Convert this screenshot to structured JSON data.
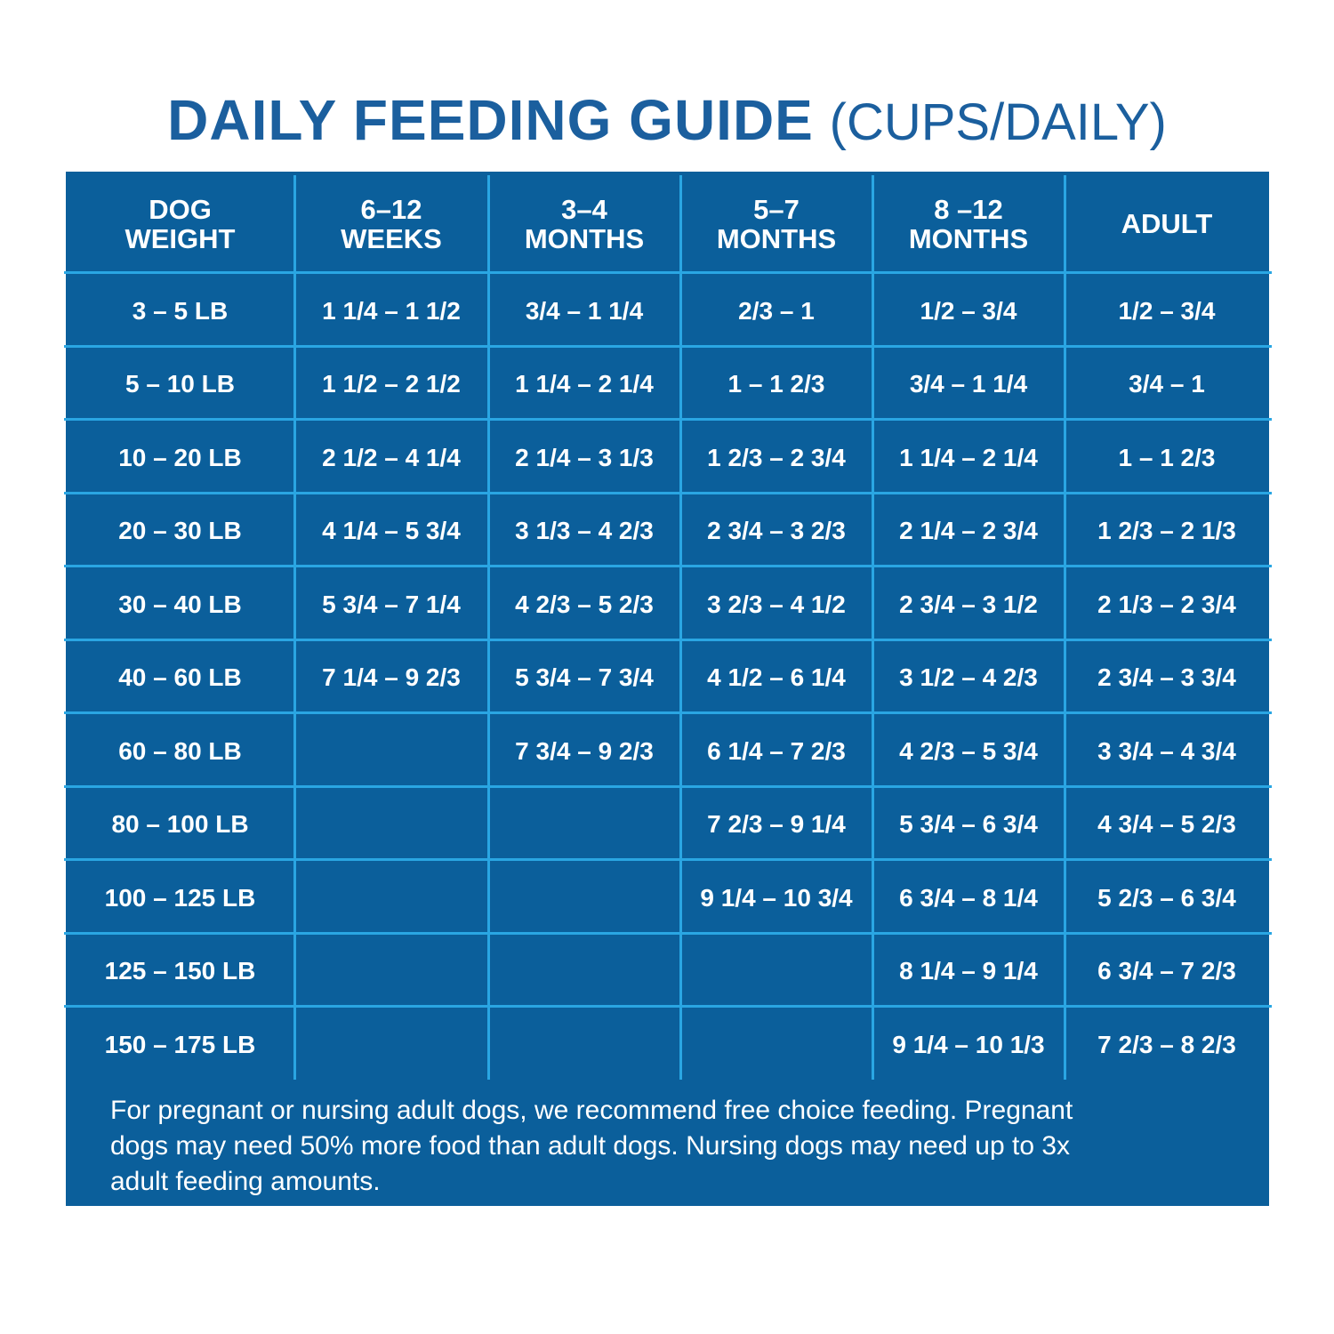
{
  "header": {
    "title": "DAILY FEEDING GUIDE",
    "subtitle": "(CUPS/DAILY)"
  },
  "table": {
    "columns": [
      [
        "DOG",
        "WEIGHT"
      ],
      [
        "6–12",
        "WEEKS"
      ],
      [
        "3–4",
        "MONTHS"
      ],
      [
        "5–7",
        "MONTHS"
      ],
      [
        "8 –12",
        "MONTHS"
      ],
      [
        "ADULT"
      ]
    ],
    "rows": [
      [
        "3 – 5 LB",
        "1 1/4 – 1 1/2",
        "3/4 – 1 1/4",
        "2/3 – 1",
        "1/2 – 3/4",
        "1/2 – 3/4"
      ],
      [
        "5 – 10 LB",
        "1 1/2 – 2 1/2",
        "1 1/4 – 2 1/4",
        "1 – 1 2/3",
        "3/4 – 1 1/4",
        "3/4 – 1"
      ],
      [
        "10 – 20 LB",
        "2 1/2 – 4 1/4",
        "2 1/4 – 3 1/3",
        "1 2/3 – 2 3/4",
        "1 1/4 – 2 1/4",
        "1 – 1 2/3"
      ],
      [
        "20 – 30 LB",
        "4 1/4 – 5 3/4",
        "3 1/3 – 4 2/3",
        "2 3/4 – 3 2/3",
        "2 1/4 – 2 3/4",
        "1 2/3 – 2 1/3"
      ],
      [
        "30 – 40 LB",
        "5 3/4 – 7 1/4",
        "4 2/3 – 5 2/3",
        "3 2/3 – 4 1/2",
        "2 3/4 – 3 1/2",
        "2 1/3 – 2 3/4"
      ],
      [
        "40 – 60 LB",
        "7 1/4 – 9 2/3",
        "5 3/4 – 7 3/4",
        "4 1/2 – 6 1/4",
        "3 1/2 – 4 2/3",
        "2 3/4 – 3 3/4"
      ],
      [
        "60 – 80 LB",
        null,
        "7 3/4 – 9 2/3",
        "6 1/4 – 7 2/3",
        "4 2/3 – 5 3/4",
        "3 3/4 – 4 3/4"
      ],
      [
        "80 – 100 LB",
        null,
        null,
        "7 2/3 – 9 1/4",
        "5 3/4 – 6 3/4",
        "4 3/4 – 5 2/3"
      ],
      [
        "100 – 125 LB",
        null,
        null,
        "9 1/4 – 10 3/4",
        "6 3/4 – 8 1/4",
        "5 2/3 – 6 3/4"
      ],
      [
        "125 – 150 LB",
        null,
        null,
        null,
        "8 1/4 – 9 1/4",
        "6 3/4 – 7 2/3"
      ],
      [
        "150 – 175 LB",
        null,
        null,
        null,
        "9 1/4 – 10 1/3",
        "7 2/3 – 8 2/3"
      ]
    ],
    "footnote": [
      "For pregnant or nursing adult dogs, we recommend free choice feeding. Pregnant",
      "dogs may need 50% more food than adult dogs. Nursing dogs may need up to 3x",
      "adult feeding amounts."
    ]
  }
}
